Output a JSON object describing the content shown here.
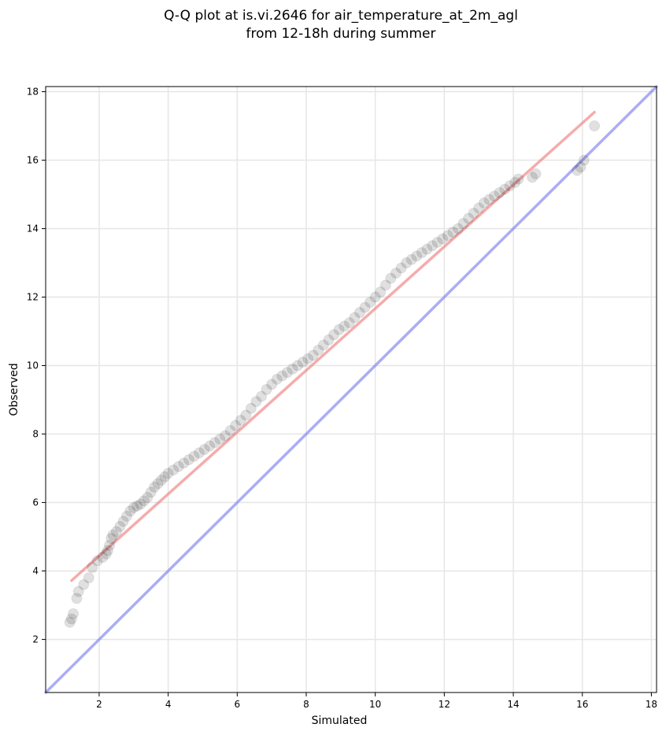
{
  "chart_data": {
    "type": "scatter",
    "title_lines": [
      "Q-Q plot at is.vi.2646 for air_temperature_at_2m_agl",
      "from 12-18h during summer"
    ],
    "xlabel": "Simulated",
    "ylabel": "Observed",
    "xlim": [
      0.45,
      18.15
    ],
    "ylim": [
      0.45,
      18.15
    ],
    "xticks": [
      2,
      4,
      6,
      8,
      10,
      12,
      14,
      16,
      18
    ],
    "yticks": [
      2,
      4,
      6,
      8,
      10,
      12,
      14,
      16,
      18
    ],
    "grid": true,
    "colors": {
      "points": "#000000",
      "fit_line": "#f08080",
      "identity_line": "#8080f0"
    },
    "fit_line": {
      "x": [
        1.2,
        16.35
      ],
      "y": [
        3.72,
        17.4
      ]
    },
    "identity_line": {
      "x": [
        0.45,
        18.15
      ],
      "y": [
        0.45,
        18.15
      ]
    },
    "points": {
      "x": [
        1.15,
        1.2,
        1.25,
        1.35,
        1.4,
        1.55,
        1.7,
        1.8,
        1.95,
        2.1,
        2.2,
        2.25,
        2.3,
        2.35,
        2.4,
        2.5,
        2.6,
        2.7,
        2.8,
        2.9,
        3.0,
        3.1,
        3.2,
        3.3,
        3.4,
        3.5,
        3.6,
        3.7,
        3.8,
        3.9,
        4.0,
        4.15,
        4.3,
        4.45,
        4.6,
        4.75,
        4.9,
        5.05,
        5.2,
        5.35,
        5.5,
        5.65,
        5.8,
        5.95,
        6.1,
        6.25,
        6.4,
        6.55,
        6.7,
        6.85,
        7.0,
        7.15,
        7.3,
        7.45,
        7.6,
        7.75,
        7.9,
        8.05,
        8.2,
        8.35,
        8.5,
        8.65,
        8.8,
        8.95,
        9.1,
        9.25,
        9.4,
        9.55,
        9.7,
        9.85,
        10.0,
        10.15,
        10.3,
        10.45,
        10.6,
        10.75,
        10.9,
        11.05,
        11.2,
        11.35,
        11.5,
        11.65,
        11.8,
        11.95,
        12.1,
        12.25,
        12.4,
        12.55,
        12.7,
        12.85,
        13.0,
        13.15,
        13.3,
        13.45,
        13.6,
        13.75,
        13.9,
        14.05,
        14.15,
        14.55,
        14.65,
        15.85,
        15.95,
        16.05,
        16.35
      ],
      "y": [
        2.5,
        2.6,
        2.75,
        3.2,
        3.4,
        3.6,
        3.8,
        4.1,
        4.3,
        4.4,
        4.5,
        4.6,
        4.75,
        4.95,
        5.05,
        5.15,
        5.3,
        5.45,
        5.6,
        5.75,
        5.85,
        5.9,
        5.95,
        6.05,
        6.15,
        6.3,
        6.45,
        6.55,
        6.65,
        6.75,
        6.85,
        6.95,
        7.05,
        7.15,
        7.25,
        7.35,
        7.45,
        7.55,
        7.65,
        7.75,
        7.85,
        7.95,
        8.1,
        8.25,
        8.4,
        8.55,
        8.75,
        8.95,
        9.1,
        9.3,
        9.45,
        9.6,
        9.7,
        9.8,
        9.9,
        10.0,
        10.1,
        10.2,
        10.3,
        10.45,
        10.6,
        10.75,
        10.9,
        11.05,
        11.15,
        11.25,
        11.4,
        11.55,
        11.7,
        11.85,
        12.0,
        12.15,
        12.35,
        12.55,
        12.7,
        12.85,
        13.0,
        13.1,
        13.2,
        13.3,
        13.4,
        13.5,
        13.6,
        13.7,
        13.8,
        13.9,
        14.0,
        14.15,
        14.3,
        14.45,
        14.6,
        14.75,
        14.85,
        14.95,
        15.05,
        15.15,
        15.25,
        15.35,
        15.45,
        15.5,
        15.6,
        15.7,
        15.8,
        16.0,
        17.0
      ]
    }
  }
}
